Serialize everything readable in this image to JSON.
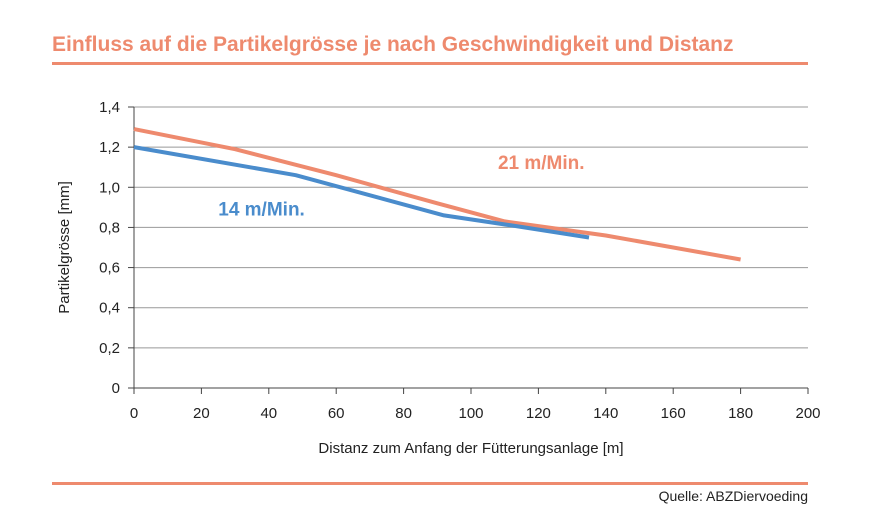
{
  "header": {
    "title": "Einfluss auf die Partikelgrösse je nach Geschwindigkeit und Distanz"
  },
  "footer": {
    "source": "Quelle: ABZDiervoeding"
  },
  "colors": {
    "accent": "#ee8a6e",
    "series_21": "#ee8a6e",
    "series_14": "#4a8ccc",
    "grid": "#999999"
  },
  "chart_data": {
    "type": "line",
    "title": "Einfluss auf die Partikelgrösse je nach Geschwindigkeit und Distanz",
    "xlabel": "Distanz zum Anfang der Fütterungsanlage [m]",
    "ylabel": "Partikelgrösse [mm]",
    "xlim": [
      0,
      200
    ],
    "ylim": [
      0,
      1.4
    ],
    "x_ticks": [
      "0",
      "20",
      "40",
      "60",
      "80",
      "100",
      "120",
      "140",
      "160",
      "180",
      "200"
    ],
    "y_ticks": [
      "0",
      "0,2",
      "0,4",
      "0,6",
      "0,8",
      "1,0",
      "1,2",
      "1,4"
    ],
    "grid": "horizontal",
    "series": [
      {
        "name": "21 m/Min.",
        "color": "#ee8a6e",
        "x": [
          0,
          30,
          60,
          90,
          110,
          140,
          180
        ],
        "y": [
          1.29,
          1.19,
          1.06,
          0.92,
          0.83,
          0.76,
          0.64
        ]
      },
      {
        "name": "14 m/Min.",
        "color": "#4a8ccc",
        "x": [
          0,
          48,
          92,
          112,
          135
        ],
        "y": [
          1.2,
          1.06,
          0.86,
          0.81,
          0.75
        ]
      }
    ]
  }
}
